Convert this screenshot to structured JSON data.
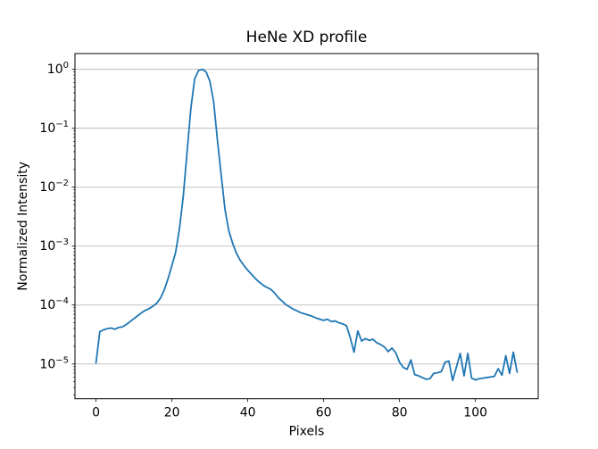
{
  "chart_data": {
    "type": "line",
    "title": "HeNe XD profile",
    "xlabel": "Pixels",
    "ylabel": "Normalized Intensity",
    "yscale": "log",
    "grid": "horizontal-major",
    "legend": "none",
    "line_color": "#1f77b4",
    "grid_color": "#b0b0b0",
    "spine_color": "#000000",
    "background_color": "#ffffff",
    "x_ticks": [
      0,
      20,
      40,
      60,
      80,
      100
    ],
    "y_tick_exponents": [
      0,
      -1,
      -2,
      -3,
      -4,
      -5
    ],
    "xlim": [
      -5.55,
      116.55
    ],
    "ylim_log10": [
      -5.59,
      0.268
    ],
    "x_start": 0,
    "x_step": 1,
    "n_points": 112,
    "x": [
      0,
      1,
      2,
      3,
      4,
      5,
      6,
      7,
      8,
      9,
      10,
      11,
      12,
      13,
      14,
      15,
      16,
      17,
      18,
      19,
      20,
      21,
      22,
      23,
      24,
      25,
      26,
      27,
      28,
      29,
      30,
      31,
      32,
      33,
      34,
      35,
      36,
      37,
      38,
      39,
      40,
      41,
      42,
      43,
      44,
      45,
      46,
      47,
      48,
      49,
      50,
      51,
      52,
      53,
      54,
      55,
      56,
      57,
      58,
      59,
      60,
      61,
      62,
      63,
      64,
      65,
      66,
      67,
      68,
      69,
      70,
      71,
      72,
      73,
      74,
      75,
      76,
      77,
      78,
      79,
      80,
      81,
      82,
      83,
      84,
      85,
      86,
      87,
      88,
      89,
      90,
      91,
      92,
      93,
      94,
      95,
      96,
      97,
      98,
      99,
      100,
      101,
      102,
      103,
      104,
      105,
      106,
      107,
      108,
      109,
      110,
      111
    ],
    "y_log10": [
      -4.98,
      -4.45,
      -4.42,
      -4.4,
      -4.39,
      -4.41,
      -4.38,
      -4.37,
      -4.33,
      -4.28,
      -4.23,
      -4.18,
      -4.13,
      -4.09,
      -4.06,
      -4.02,
      -3.97,
      -3.88,
      -3.74,
      -3.55,
      -3.33,
      -3.1,
      -2.7,
      -2.15,
      -1.4,
      -0.66,
      -0.16,
      -0.02,
      0.0,
      -0.04,
      -0.2,
      -0.55,
      -1.2,
      -1.8,
      -2.38,
      -2.74,
      -2.95,
      -3.12,
      -3.24,
      -3.33,
      -3.41,
      -3.48,
      -3.55,
      -3.61,
      -3.66,
      -3.7,
      -3.73,
      -3.79,
      -3.87,
      -3.93,
      -3.99,
      -4.03,
      -4.07,
      -4.1,
      -4.13,
      -4.15,
      -4.17,
      -4.19,
      -4.22,
      -4.24,
      -4.26,
      -4.24,
      -4.28,
      -4.27,
      -4.3,
      -4.32,
      -4.35,
      -4.55,
      -4.8,
      -4.44,
      -4.61,
      -4.57,
      -4.6,
      -4.58,
      -4.64,
      -4.67,
      -4.71,
      -4.79,
      -4.73,
      -4.81,
      -4.97,
      -5.06,
      -5.09,
      -4.93,
      -5.18,
      -5.2,
      -5.23,
      -5.26,
      -5.25,
      -5.16,
      -5.15,
      -5.13,
      -4.97,
      -4.95,
      -5.28,
      -5.05,
      -4.82,
      -5.2,
      -4.82,
      -5.24,
      -5.27,
      -5.25,
      -5.24,
      -5.23,
      -5.22,
      -5.21,
      -5.08,
      -5.19,
      -4.86,
      -5.16,
      -4.8,
      -5.14
    ],
    "y_value_note": "y = 10^(y_log10), peak normalized to 1.0 at x=28"
  }
}
